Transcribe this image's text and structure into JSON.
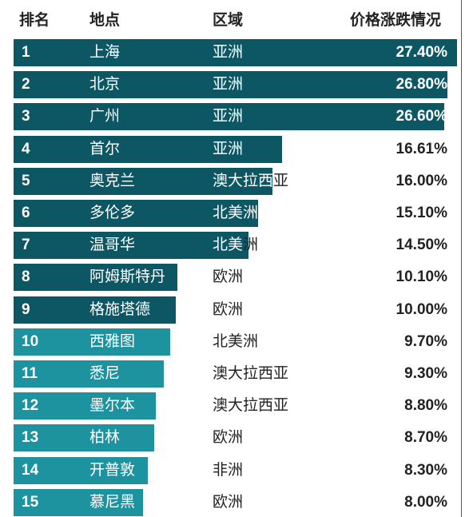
{
  "headers": {
    "rank": "排名",
    "place": "地点",
    "region": "区域",
    "change": "价格涨跌情况"
  },
  "colors": {
    "dark_bar": "#0d5764",
    "light_bar": "#1d93a0",
    "text_on_bar": "#ffffff",
    "text_off_bar": "#222222"
  },
  "chart_data": {
    "type": "bar",
    "orientation": "horizontal",
    "categories": [
      "上海",
      "北京",
      "广州",
      "首尔",
      "奥克兰",
      "多伦多",
      "温哥华",
      "阿姆斯特丹",
      "格施塔德",
      "西雅图",
      "悉尼",
      "墨尔本",
      "柏林",
      "开普敦",
      "慕尼黑"
    ],
    "ranks": [
      "1",
      "2",
      "3",
      "4",
      "5",
      "6",
      "7",
      "8",
      "9",
      "10",
      "11",
      "12",
      "13",
      "14",
      "15"
    ],
    "regions": [
      "亚洲",
      "亚洲",
      "亚洲",
      "亚洲",
      "澳大拉西亚",
      "北美洲",
      "北美洲",
      "欧洲",
      "欧洲",
      "北美洲",
      "澳大拉西亚",
      "澳大拉西亚",
      "欧洲",
      "非洲",
      "欧洲"
    ],
    "values": [
      27.4,
      26.8,
      26.6,
      16.61,
      16.0,
      15.1,
      14.5,
      10.1,
      10.0,
      9.7,
      9.3,
      8.8,
      8.7,
      8.3,
      8.0
    ],
    "value_labels": [
      "27.40%",
      "26.80%",
      "26.60%",
      "16.61%",
      "16.00%",
      "15.10%",
      "14.50%",
      "10.10%",
      "10.00%",
      "9.70%",
      "9.30%",
      "8.80%",
      "8.70%",
      "8.30%",
      "8.00%"
    ],
    "dark_top_count": 9
  }
}
